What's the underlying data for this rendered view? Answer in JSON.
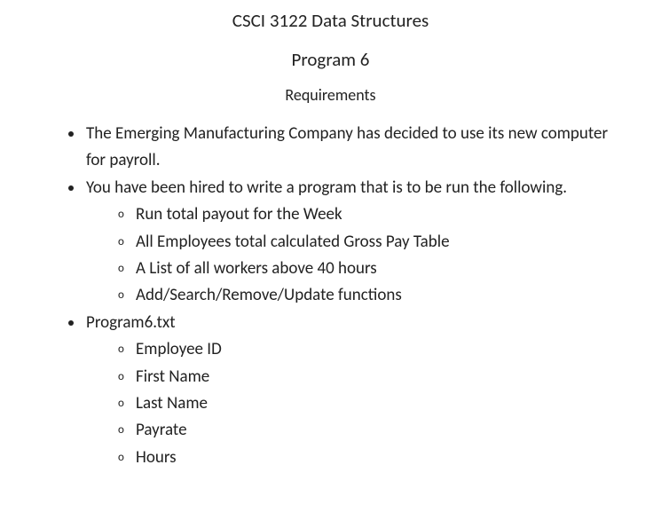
{
  "colors": {
    "background": "#ffffff",
    "text": "#222222"
  },
  "typography": {
    "font_family": "Calibri",
    "base_fontsize_pt": 15,
    "heading_fontsize_pt": 16,
    "subheading_fontsize_pt": 14
  },
  "header": {
    "course_title": "CSCI 3122 Data Structures",
    "program_title": "Program 6",
    "section_title": "Requirements"
  },
  "bullets": [
    {
      "text": "The Emerging Manufacturing Company has decided to use its new computer for payroll.",
      "sub": []
    },
    {
      "text": "You have been hired to write a program that is to be run the following.",
      "sub": [
        "Run total payout for the Week",
        "All Employees total calculated Gross Pay Table",
        "A List of all workers above 40 hours",
        "Add/Search/Remove/Update functions"
      ]
    },
    {
      "text": "Program6.txt",
      "sub": [
        "Employee ID",
        "First Name",
        "Last Name",
        "Payrate",
        "Hours"
      ]
    }
  ]
}
